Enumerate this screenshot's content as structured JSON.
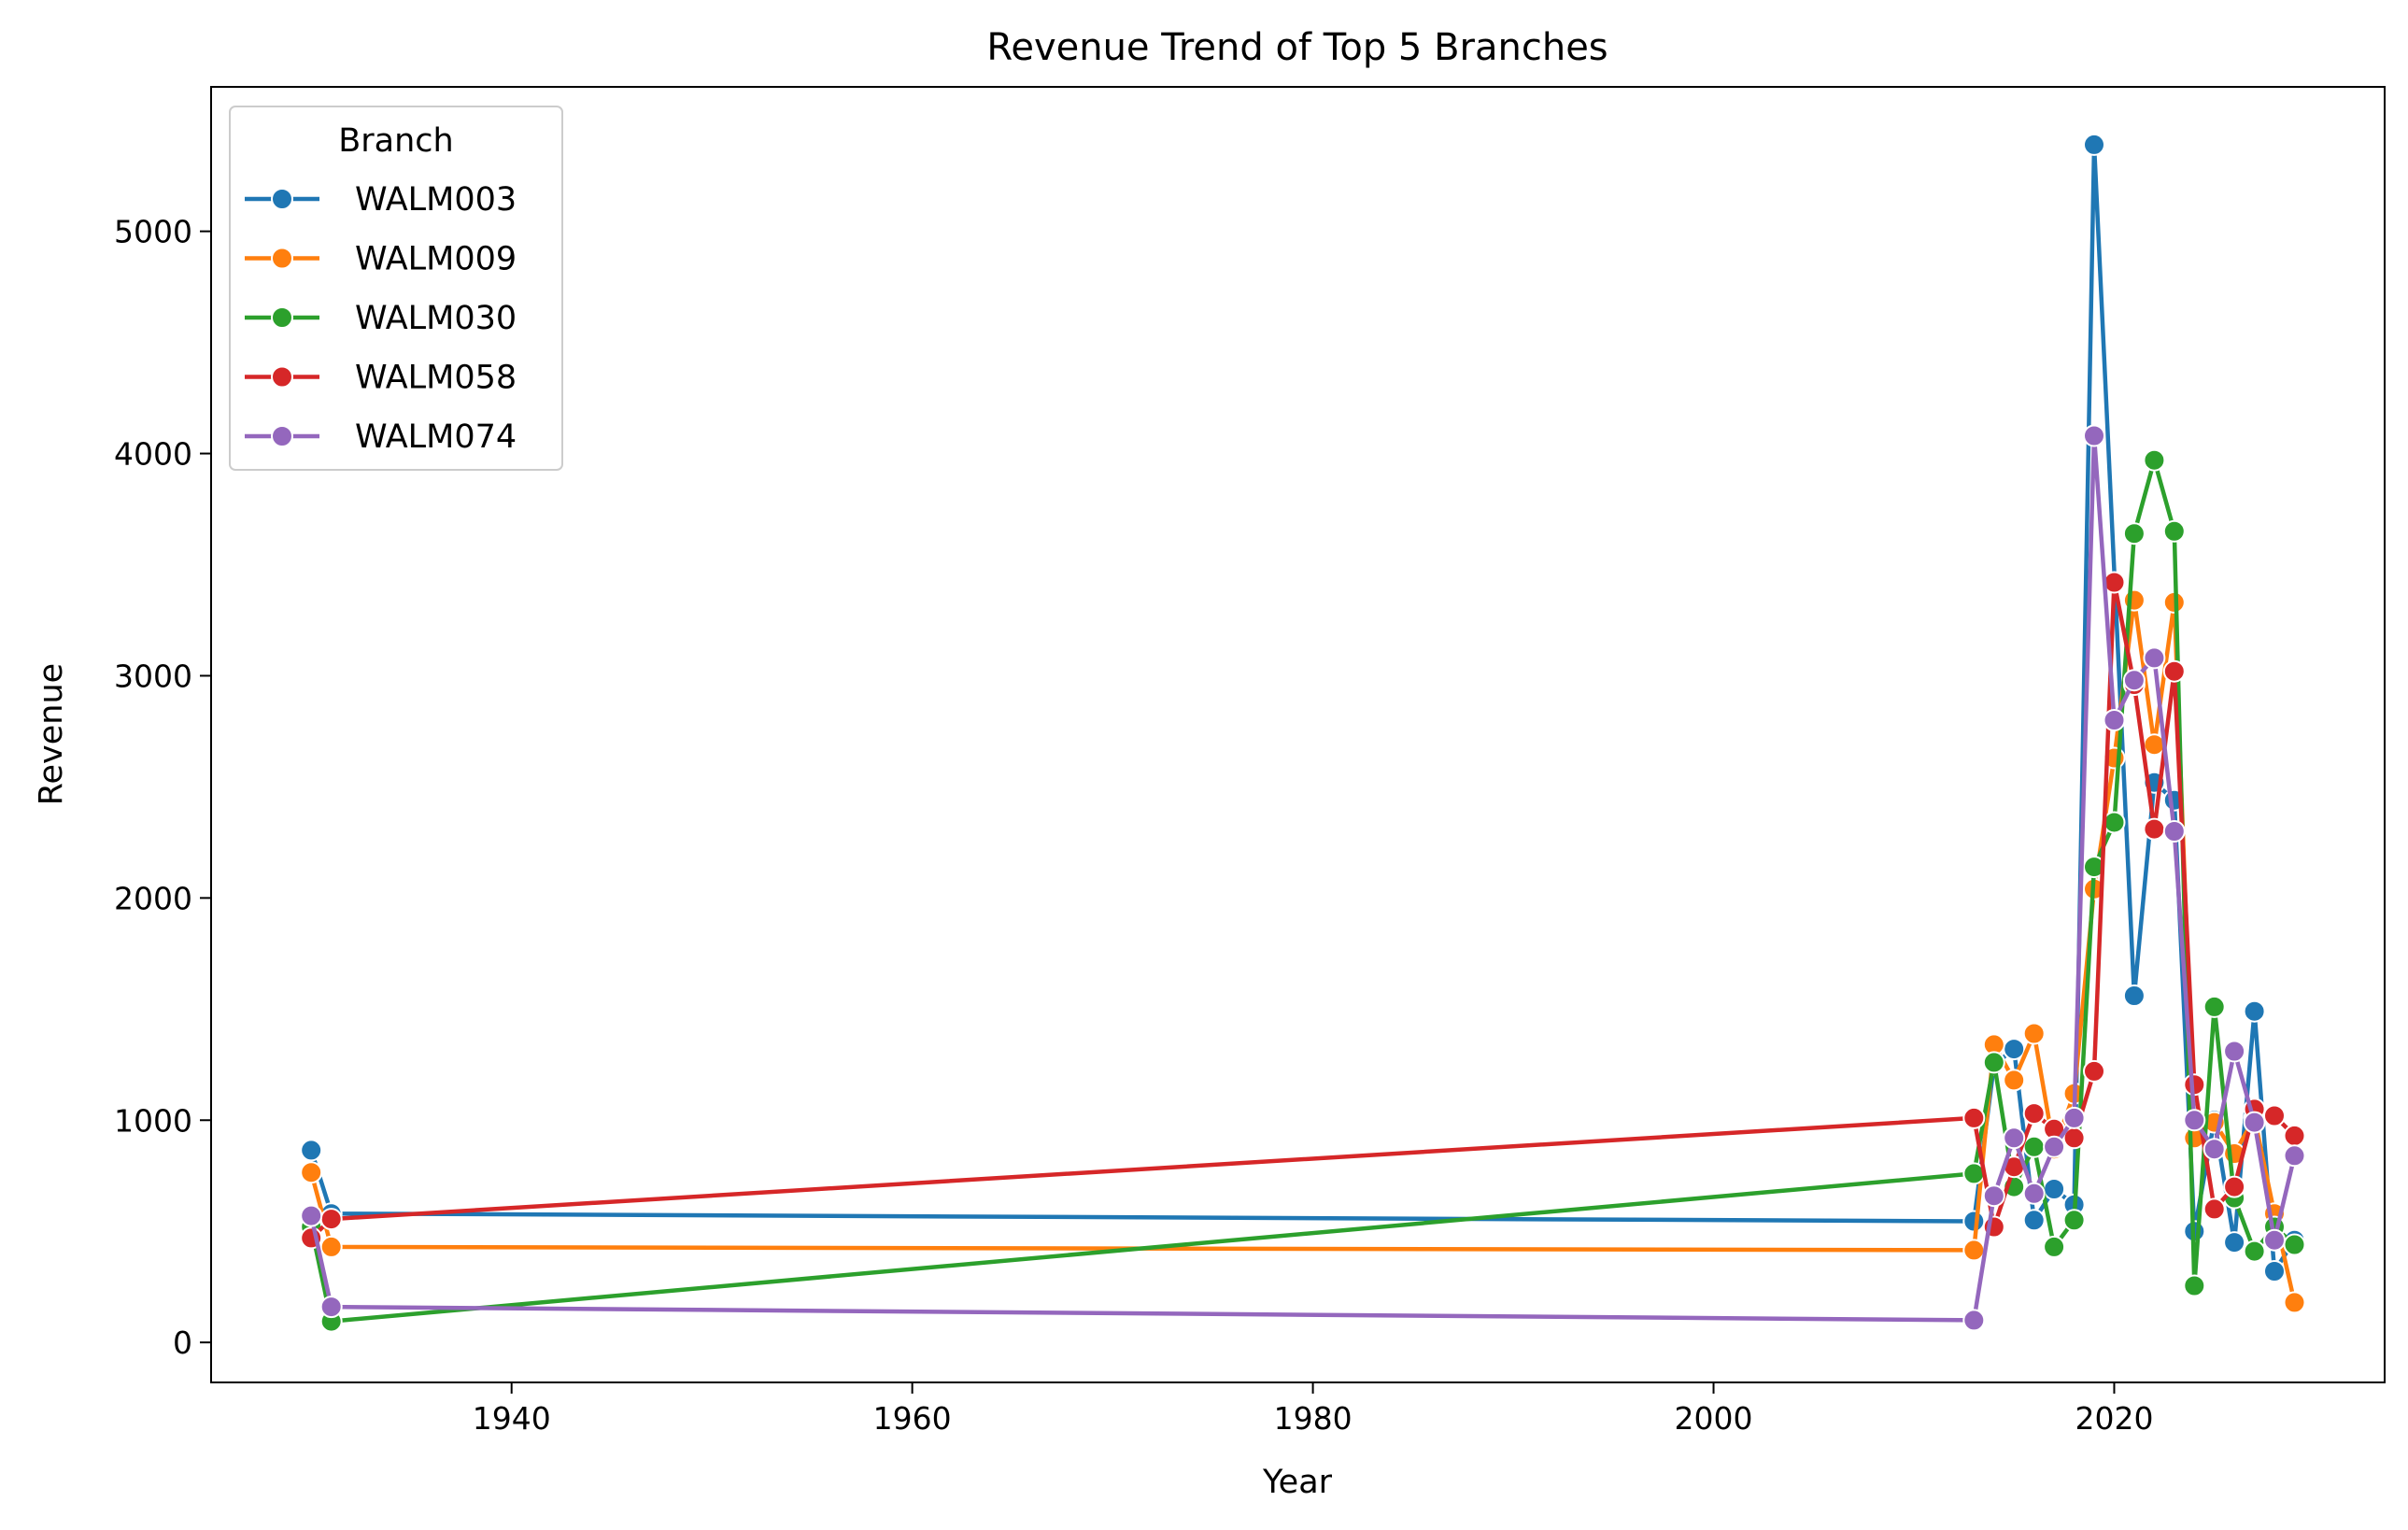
{
  "chart_data": {
    "type": "line",
    "title": "Revenue Trend of Top 5 Branches",
    "xlabel": "Year",
    "ylabel": "Revenue",
    "xlim": [
      1925,
      2033.5
    ],
    "ylim": [
      -180,
      5650
    ],
    "xticks": [
      1940,
      1960,
      1980,
      2000,
      2020
    ],
    "yticks": [
      0,
      1000,
      2000,
      3000,
      4000,
      5000
    ],
    "grid": false,
    "legend": {
      "title": "Branch",
      "placement": "top-left"
    },
    "series": [
      {
        "name": "WALM003",
        "color": "#1f77b4",
        "points": [
          [
            1930,
            865
          ],
          [
            1931,
            580
          ],
          [
            2013,
            545
          ],
          [
            2014,
            1250
          ],
          [
            2015,
            1320
          ],
          [
            2016,
            550
          ],
          [
            2017,
            690
          ],
          [
            2018,
            620
          ],
          [
            2019,
            5390
          ],
          [
            2021,
            1560
          ],
          [
            2022,
            2520
          ],
          [
            2023,
            2440
          ],
          [
            2024,
            500
          ],
          [
            2025,
            1000
          ],
          [
            2026,
            450
          ],
          [
            2027,
            1490
          ],
          [
            2028,
            320
          ],
          [
            2029,
            460
          ]
        ]
      },
      {
        "name": "WALM009",
        "color": "#ff7f0e",
        "points": [
          [
            1930,
            765
          ],
          [
            1931,
            430
          ],
          [
            2013,
            415
          ],
          [
            2014,
            1340
          ],
          [
            2015,
            1180
          ],
          [
            2016,
            1390
          ],
          [
            2017,
            870
          ],
          [
            2018,
            1120
          ],
          [
            2019,
            2040
          ],
          [
            2020,
            2630
          ],
          [
            2021,
            3340
          ],
          [
            2022,
            2690
          ],
          [
            2023,
            3330
          ],
          [
            2024,
            920
          ],
          [
            2025,
            990
          ],
          [
            2026,
            850
          ],
          [
            2027,
            1010
          ],
          [
            2028,
            580
          ],
          [
            2029,
            180
          ]
        ]
      },
      {
        "name": "WALM030",
        "color": "#2ca02c",
        "points": [
          [
            1930,
            520
          ],
          [
            1931,
            95
          ],
          [
            2013,
            760
          ],
          [
            2014,
            1260
          ],
          [
            2015,
            700
          ],
          [
            2016,
            880
          ],
          [
            2017,
            430
          ],
          [
            2018,
            550
          ],
          [
            2019,
            2140
          ],
          [
            2020,
            2340
          ],
          [
            2021,
            3640
          ],
          [
            2022,
            3970
          ],
          [
            2023,
            3650
          ],
          [
            2024,
            255
          ],
          [
            2025,
            1510
          ],
          [
            2026,
            650
          ],
          [
            2027,
            410
          ],
          [
            2028,
            520
          ],
          [
            2029,
            440
          ]
        ]
      },
      {
        "name": "WALM058",
        "color": "#d62728",
        "points": [
          [
            1930,
            470
          ],
          [
            1931,
            555
          ],
          [
            2013,
            1010
          ],
          [
            2014,
            520
          ],
          [
            2015,
            790
          ],
          [
            2016,
            1030
          ],
          [
            2017,
            960
          ],
          [
            2018,
            920
          ],
          [
            2019,
            1220
          ],
          [
            2020,
            3420
          ],
          [
            2021,
            2960
          ],
          [
            2022,
            2310
          ],
          [
            2023,
            3020
          ],
          [
            2024,
            1160
          ],
          [
            2025,
            600
          ],
          [
            2026,
            700
          ],
          [
            2027,
            1050
          ],
          [
            2028,
            1020
          ],
          [
            2029,
            930
          ]
        ]
      },
      {
        "name": "WALM074",
        "color": "#9467bd",
        "points": [
          [
            1930,
            570
          ],
          [
            1931,
            160
          ],
          [
            2013,
            100
          ],
          [
            2014,
            660
          ],
          [
            2015,
            920
          ],
          [
            2016,
            670
          ],
          [
            2017,
            880
          ],
          [
            2018,
            1010
          ],
          [
            2019,
            4080
          ],
          [
            2020,
            2800
          ],
          [
            2021,
            2980
          ],
          [
            2022,
            3080
          ],
          [
            2023,
            2300
          ],
          [
            2024,
            1000
          ],
          [
            2025,
            870
          ],
          [
            2026,
            1310
          ],
          [
            2027,
            990
          ],
          [
            2028,
            460
          ],
          [
            2029,
            840
          ]
        ]
      }
    ]
  }
}
